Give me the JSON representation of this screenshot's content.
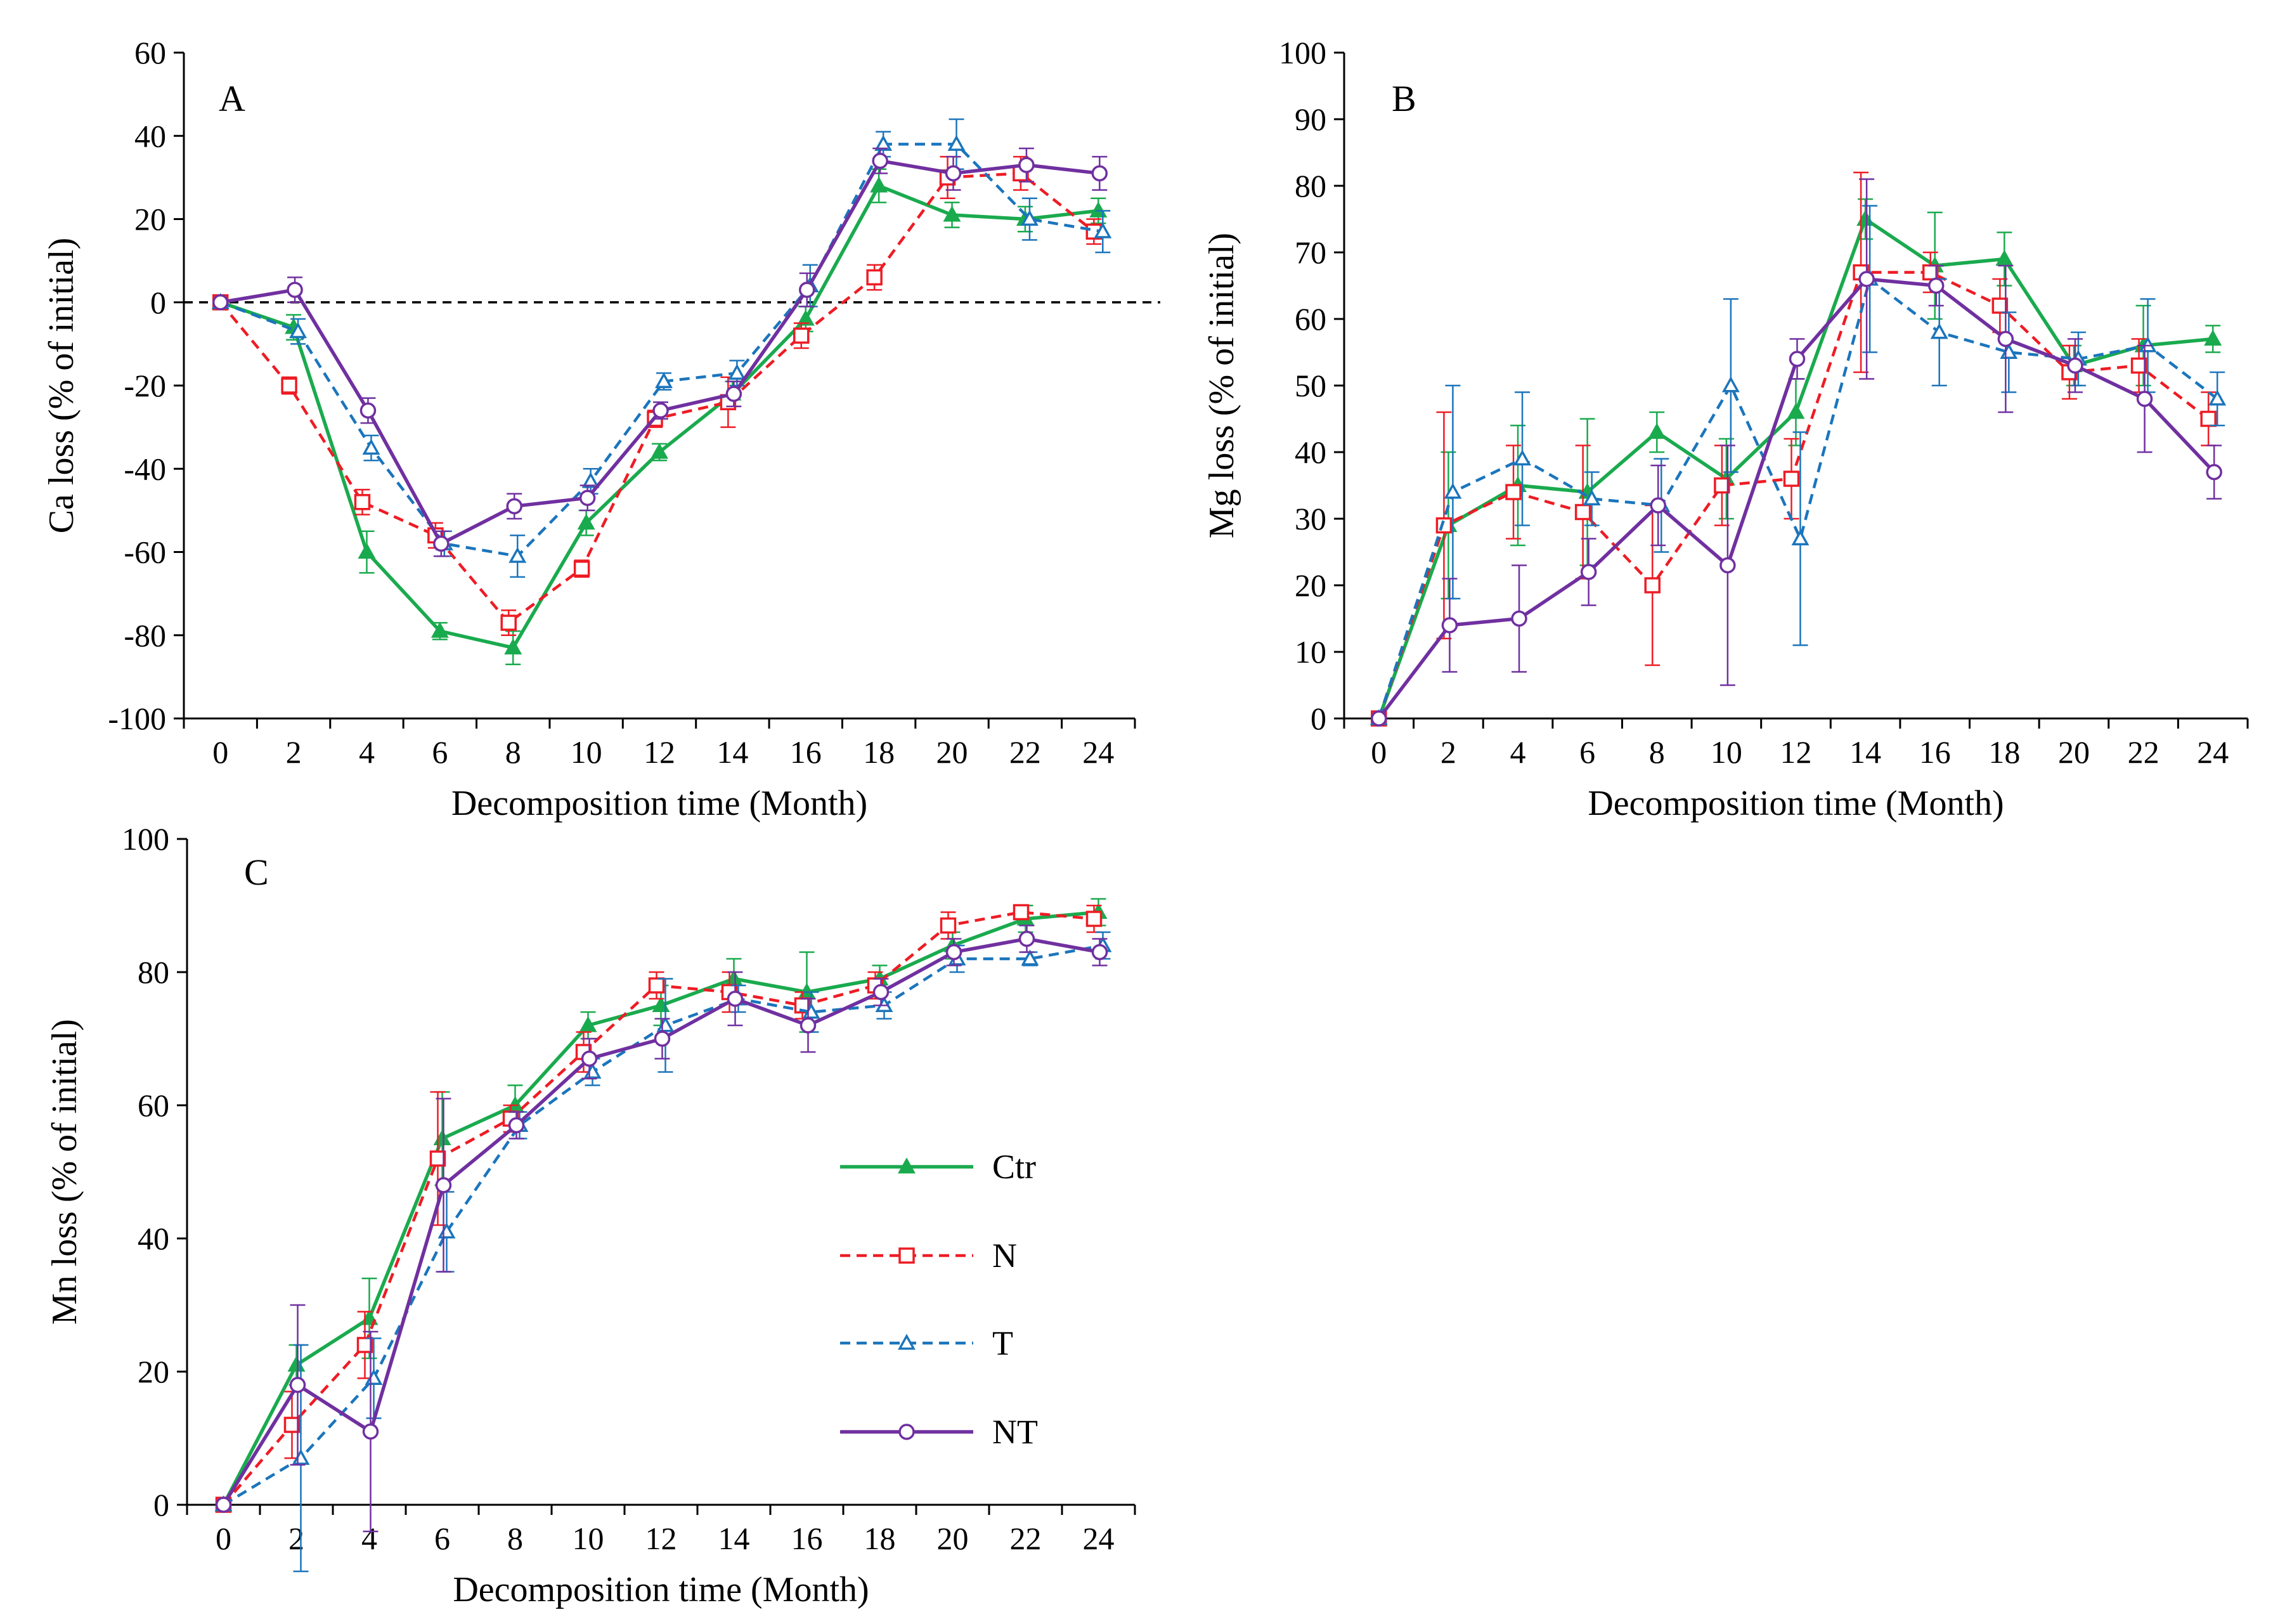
{
  "series_styles": {
    "Ctr": {
      "color": "#1aaa4e",
      "marker": "triangle-filled",
      "dash": "solid"
    },
    "N": {
      "color": "#ee1c24",
      "marker": "square-open",
      "dash": "dashed"
    },
    "T": {
      "color": "#1b75bc",
      "marker": "triangle-open",
      "dash": "dashed"
    },
    "NT": {
      "color": "#7030a0",
      "marker": "circle-open",
      "dash": "solid"
    }
  },
  "legend": {
    "items": [
      "Ctr",
      "N",
      "T",
      "NT"
    ]
  },
  "chart_data": [
    {
      "id": "A",
      "type": "line",
      "panel_label": "A",
      "xlabel": "Decomposition time (Month)",
      "ylabel": "Ca loss (% of initial)",
      "xlim": [
        -1,
        25
      ],
      "ylim": [
        -100,
        60
      ],
      "xticks": [
        0,
        2,
        4,
        6,
        8,
        10,
        12,
        14,
        16,
        18,
        20,
        22,
        24
      ],
      "yticks": [
        -100,
        -80,
        -60,
        -40,
        -20,
        0,
        20,
        40,
        60
      ],
      "x": [
        0,
        2,
        4,
        6,
        8,
        10,
        12,
        14,
        16,
        18,
        20,
        22,
        24
      ],
      "reference_line": {
        "y": 0,
        "style": "dashed",
        "color": "#000000"
      },
      "series": [
        {
          "name": "Ctr",
          "values": [
            0,
            -6,
            -60,
            -79,
            -83,
            -53,
            -36,
            -22,
            -4,
            28,
            21,
            20,
            22
          ],
          "errors": [
            0,
            3,
            5,
            2,
            4,
            3,
            2,
            3,
            3,
            4,
            3,
            3,
            3
          ]
        },
        {
          "name": "N",
          "values": [
            0,
            -20,
            -48,
            -56,
            -77,
            -64,
            -28,
            -24,
            -8,
            6,
            30,
            31,
            17
          ],
          "errors": [
            0,
            2,
            3,
            3,
            3,
            2,
            2,
            6,
            3,
            3,
            5,
            4,
            3
          ]
        },
        {
          "name": "T",
          "values": [
            0,
            -7,
            -35,
            -58,
            -61,
            -43,
            -19,
            -17,
            4,
            38,
            38,
            20,
            17
          ],
          "errors": [
            0,
            3,
            3,
            3,
            5,
            3,
            2,
            3,
            5,
            3,
            6,
            5,
            5
          ]
        },
        {
          "name": "NT",
          "values": [
            0,
            3,
            -26,
            -58,
            -49,
            -47,
            -26,
            -22,
            3,
            34,
            31,
            33,
            31
          ],
          "errors": [
            0,
            3,
            3,
            3,
            3,
            3,
            2,
            3,
            4,
            3,
            4,
            4,
            4
          ]
        }
      ]
    },
    {
      "id": "B",
      "type": "line",
      "panel_label": "B",
      "xlabel": "Decomposition time (Month)",
      "ylabel": "Mg loss (% of initial)",
      "xlim": [
        -1,
        25
      ],
      "ylim": [
        0,
        100
      ],
      "xticks": [
        0,
        2,
        4,
        6,
        8,
        10,
        12,
        14,
        16,
        18,
        20,
        22,
        24
      ],
      "yticks": [
        0,
        10,
        20,
        30,
        40,
        50,
        60,
        70,
        80,
        90,
        100
      ],
      "x": [
        0,
        2,
        4,
        6,
        8,
        10,
        12,
        14,
        16,
        18,
        20,
        22,
        24
      ],
      "series": [
        {
          "name": "Ctr",
          "values": [
            0,
            29,
            35,
            34,
            43,
            36,
            46,
            75,
            68,
            69,
            53,
            56,
            57
          ],
          "errors": [
            0,
            11,
            9,
            11,
            3,
            6,
            5,
            3,
            8,
            4,
            3,
            6,
            2
          ]
        },
        {
          "name": "N",
          "values": [
            0,
            29,
            34,
            31,
            20,
            35,
            36,
            67,
            67,
            62,
            52,
            53,
            45
          ],
          "errors": [
            0,
            17,
            7,
            10,
            12,
            6,
            6,
            15,
            3,
            4,
            4,
            4,
            4
          ]
        },
        {
          "name": "T",
          "values": [
            0,
            34,
            39,
            33,
            32,
            50,
            27,
            66,
            58,
            55,
            54,
            56,
            48
          ],
          "errors": [
            0,
            16,
            10,
            4,
            7,
            13,
            16,
            11,
            8,
            6,
            4,
            7,
            4
          ]
        },
        {
          "name": "NT",
          "values": [
            0,
            14,
            15,
            22,
            32,
            23,
            54,
            66,
            65,
            57,
            53,
            48,
            37
          ],
          "errors": [
            0,
            7,
            8,
            5,
            6,
            18,
            3,
            15,
            3,
            11,
            4,
            8,
            4
          ]
        }
      ]
    },
    {
      "id": "C",
      "type": "line",
      "panel_label": "C",
      "xlabel": "Decomposition time (Month)",
      "ylabel": "Mn loss (% of initial)",
      "xlim": [
        -1,
        25
      ],
      "ylim": [
        0,
        100
      ],
      "xticks": [
        0,
        2,
        4,
        6,
        8,
        10,
        12,
        14,
        16,
        18,
        20,
        22,
        24
      ],
      "yticks": [
        0,
        20,
        40,
        60,
        80,
        100
      ],
      "x": [
        0,
        2,
        4,
        6,
        8,
        10,
        12,
        14,
        16,
        18,
        20,
        22,
        24
      ],
      "series": [
        {
          "name": "Ctr",
          "values": [
            0,
            21,
            28,
            55,
            60,
            72,
            75,
            79,
            77,
            79,
            84,
            88,
            89
          ],
          "errors": [
            0,
            3,
            6,
            7,
            3,
            2,
            3,
            3,
            6,
            2,
            2,
            2,
            2
          ]
        },
        {
          "name": "N",
          "values": [
            0,
            12,
            24,
            52,
            58,
            68,
            78,
            77,
            75,
            78,
            87,
            89,
            88
          ],
          "errors": [
            0,
            5,
            5,
            10,
            2,
            3,
            2,
            3,
            2,
            2,
            2,
            1,
            2
          ]
        },
        {
          "name": "T",
          "values": [
            0,
            7,
            19,
            41,
            57,
            65,
            72,
            76,
            74,
            75,
            82,
            82,
            84
          ],
          "errors": [
            0,
            17,
            6,
            6,
            2,
            2,
            7,
            2,
            3,
            2,
            2,
            1,
            2
          ]
        },
        {
          "name": "NT",
          "values": [
            0,
            18,
            11,
            48,
            57,
            67,
            70,
            76,
            72,
            77,
            83,
            85,
            83
          ],
          "errors": [
            0,
            12,
            15,
            13,
            2,
            3,
            3,
            4,
            4,
            2,
            2,
            2,
            2
          ]
        }
      ]
    }
  ]
}
